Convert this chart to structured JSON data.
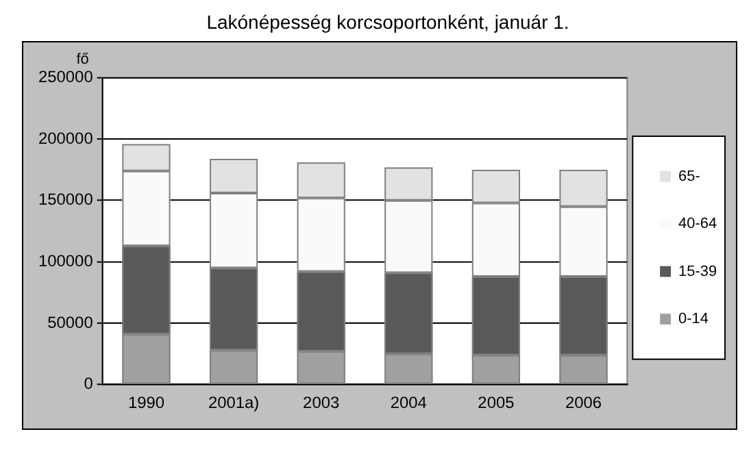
{
  "chart_data": {
    "type": "bar",
    "title": "Lakónépesség korcsoportonként, január 1.",
    "ylabel": "fő",
    "categories": [
      "1990",
      "2001a)",
      "2003",
      "2004",
      "2005",
      "2006"
    ],
    "stacked": true,
    "series": [
      {
        "name": "0-14",
        "color": "#a0a0a0",
        "values": [
          41000,
          28000,
          27000,
          25000,
          24000,
          24000
        ]
      },
      {
        "name": "15-39",
        "color": "#595959",
        "values": [
          72000,
          67000,
          65000,
          66000,
          64000,
          64000
        ]
      },
      {
        "name": "40-64",
        "color": "#fafafa",
        "values": [
          61000,
          61000,
          60000,
          59000,
          60000,
          57000
        ]
      },
      {
        "name": "65-",
        "color": "#e2e2e2",
        "values": [
          22000,
          28000,
          29000,
          27000,
          27000,
          30000
        ]
      }
    ],
    "ylim": [
      0,
      250000
    ],
    "yticks": [
      0,
      50000,
      100000,
      150000,
      200000,
      250000
    ],
    "grid": "y",
    "legend": "right"
  }
}
